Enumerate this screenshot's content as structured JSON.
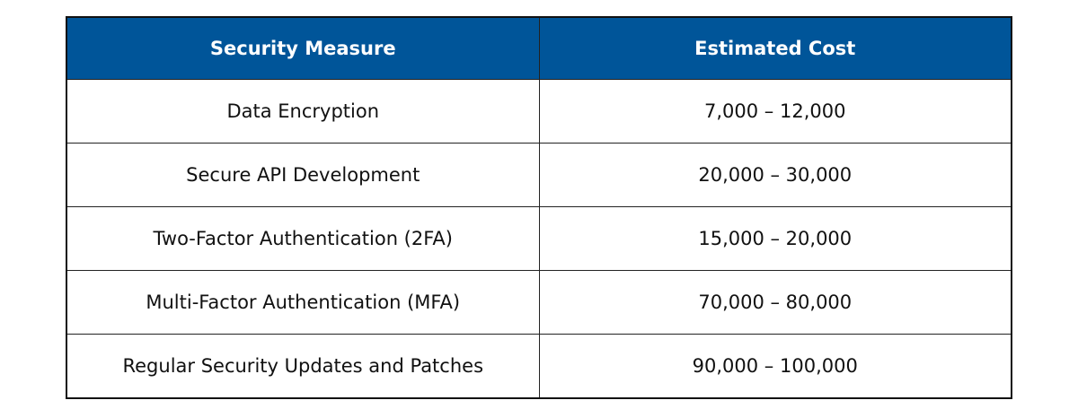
{
  "table": {
    "header_color": "#005599",
    "headers": [
      "Security Measure",
      "Estimated Cost"
    ],
    "rows": [
      {
        "measure": "Data Encryption",
        "cost": "7,000 – 12,000"
      },
      {
        "measure": "Secure API Development",
        "cost": "20,000 – 30,000"
      },
      {
        "measure": "Two-Factor Authentication (2FA)",
        "cost": "15,000 – 20,000"
      },
      {
        "measure": "Multi-Factor Authentication (MFA)",
        "cost": "70,000 – 80,000"
      },
      {
        "measure": "Regular Security Updates and Patches",
        "cost": "90,000 – 100,000"
      }
    ]
  }
}
